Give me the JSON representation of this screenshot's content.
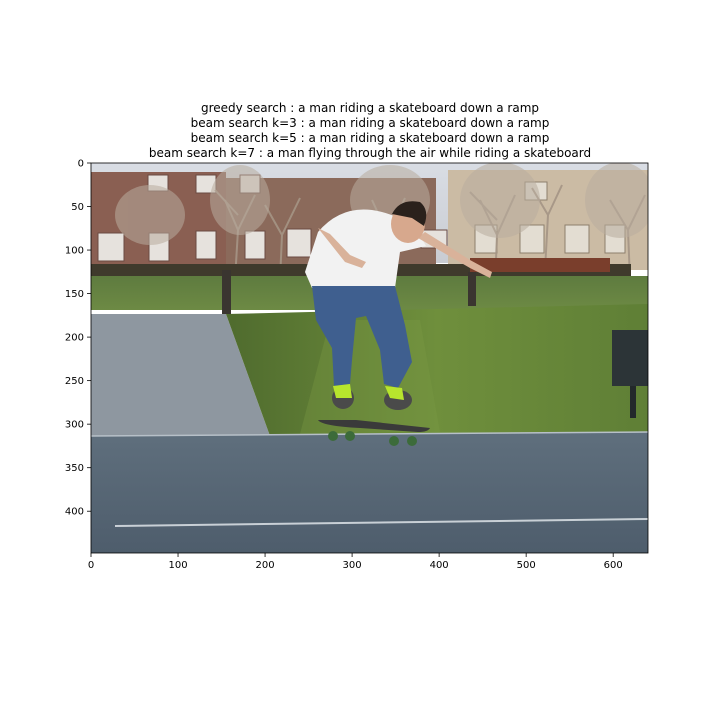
{
  "figure": {
    "title_lines": [
      "greedy search : a man riding a skateboard down a ramp",
      "beam search k=3 :  a man riding a skateboard down a ramp",
      "beam search k=5 :  a man riding a skateboard down a ramp",
      "beam search k=7 :  a man flying through the air while riding a skateboard"
    ],
    "x_axis": {
      "ticks": [
        0,
        100,
        200,
        300,
        400,
        500,
        600
      ],
      "range": [
        0,
        640
      ]
    },
    "y_axis": {
      "ticks": [
        0,
        50,
        100,
        150,
        200,
        250,
        300,
        350,
        400
      ],
      "range": [
        0,
        448
      ]
    },
    "image_subject": "photo"
  }
}
